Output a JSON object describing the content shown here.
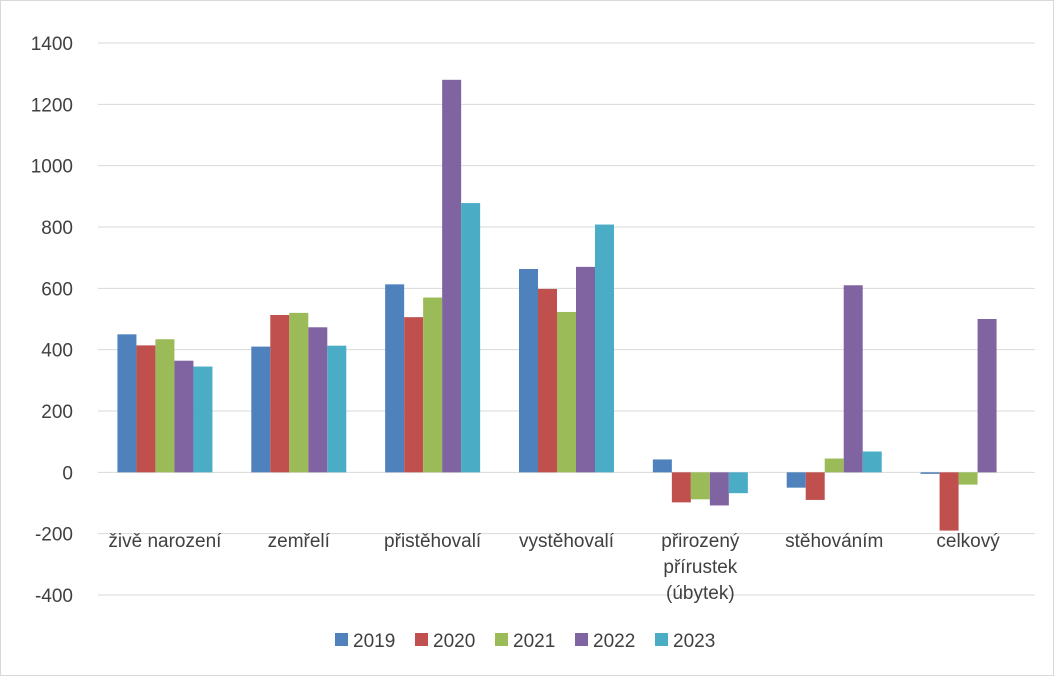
{
  "chart_data": {
    "type": "bar",
    "categories": [
      [
        "živě narození"
      ],
      [
        "zemřelí"
      ],
      [
        "přistěhovalí"
      ],
      [
        "vystěhovalí"
      ],
      [
        "přirozený",
        "přírustek",
        "(úbytek)"
      ],
      [
        "stěhováním"
      ],
      [
        "celkový"
      ]
    ],
    "series": [
      {
        "name": "2019",
        "color": "#4F81BD",
        "values": [
          450,
          410,
          613,
          663,
          42,
          -50,
          -5
        ]
      },
      {
        "name": "2020",
        "color": "#C0504D",
        "values": [
          414,
          513,
          506,
          598,
          -98,
          -90,
          -190
        ]
      },
      {
        "name": "2021",
        "color": "#9BBB59",
        "values": [
          434,
          520,
          570,
          523,
          -88,
          45,
          -40
        ]
      },
      {
        "name": "2022",
        "color": "#8064A2",
        "values": [
          364,
          473,
          1280,
          670,
          -108,
          610,
          500
        ]
      },
      {
        "name": "2023",
        "color": "#4BACC6",
        "values": [
          345,
          413,
          878,
          808,
          -68,
          68,
          0
        ]
      }
    ],
    "title": "",
    "xlabel": "",
    "ylabel": "",
    "ylim": [
      -400,
      1400
    ],
    "yticks": [
      "1400",
      "1200",
      "1000",
      "800",
      "600",
      "400",
      "200",
      "0",
      "-200",
      "-400"
    ],
    "grid": true,
    "legend": "bottom"
  }
}
